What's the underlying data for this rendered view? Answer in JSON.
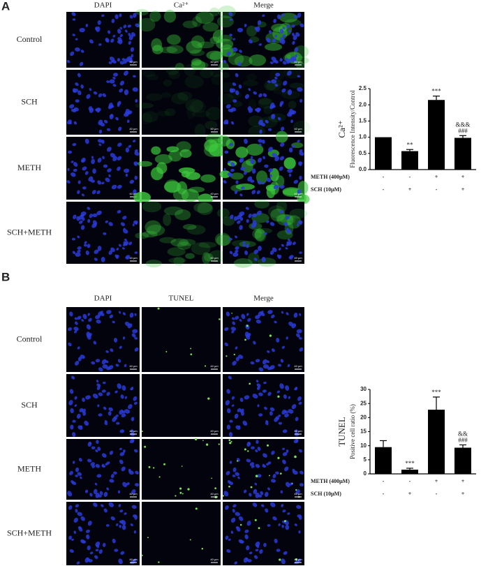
{
  "panels": [
    {
      "label": "A",
      "column_headers": [
        "DAPI",
        "Ca²⁺",
        "Merge"
      ],
      "row_labels": [
        "Control",
        "SCH",
        "METH",
        "SCH+METH"
      ],
      "scale_bar": "40 μm"
    },
    {
      "label": "B",
      "column_headers": [
        "DAPI",
        "TUNEL",
        "Merge"
      ],
      "row_labels": [
        "Control",
        "SCH",
        "METH",
        "SCH+METH"
      ],
      "scale_bar": "40 μm"
    }
  ],
  "chart_data": [
    {
      "type": "bar",
      "ylabel": [
        "Ca²⁺",
        "Fluorescence Intensity/Control"
      ],
      "values": [
        1.0,
        0.57,
        2.15,
        0.98
      ],
      "errors": [
        0,
        0.05,
        0.12,
        0.07
      ],
      "color": "#000000",
      "ylim": [
        0,
        2.5
      ],
      "yticks": [
        {
          "value": 0,
          "label": "0.0"
        },
        0.5,
        {
          "value": 1,
          "label": "1.0"
        },
        1.5,
        {
          "value": 2,
          "label": "2.0"
        },
        2.5
      ],
      "annotations": [
        [],
        [
          "**"
        ],
        [
          "***"
        ],
        [
          "&&&",
          "###"
        ]
      ],
      "conditions": [
        {
          "name": "METH (400μM)",
          "values": [
            "-",
            "-",
            "+",
            "+"
          ]
        },
        {
          "name": "SCH (10μM)",
          "values": [
            "-",
            "+",
            "-",
            "+"
          ]
        }
      ]
    },
    {
      "type": "bar",
      "ylabel": [
        "TUNEL",
        "Positive cell ratio (%)"
      ],
      "values": [
        9.5,
        1.5,
        22.8,
        9.3
      ],
      "errors": [
        2.3,
        0.5,
        4.5,
        1.0
      ],
      "color": "#000000",
      "ylim": [
        0,
        30
      ],
      "yticks": [
        0,
        5,
        10,
        15,
        20,
        25,
        30
      ],
      "annotations": [
        [],
        [
          "***"
        ],
        [
          "***"
        ],
        [
          "&&",
          "###"
        ]
      ],
      "conditions": [
        {
          "name": "METH (400μM)",
          "values": [
            "-",
            "-",
            "+",
            "+"
          ]
        },
        {
          "name": "SCH (10μM)",
          "values": [
            "-",
            "+",
            "-",
            "+"
          ]
        }
      ]
    }
  ]
}
